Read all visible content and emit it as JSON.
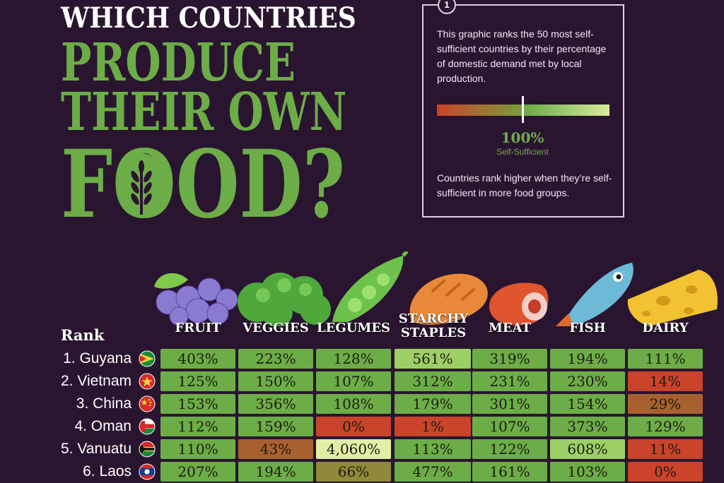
{
  "title": {
    "line1": "WHICH COUNTRIES",
    "line2": "PRODUCE",
    "line3": "THEIR OWN",
    "line4": "FOOD?"
  },
  "info": {
    "badge": "1",
    "text1": "This graphic ranks the 50 most self-sufficient countries by their percentage of domestic demand met by local production.",
    "scale_value": "100%",
    "scale_label": "Self-Sufficient",
    "text2": "Countries rank higher when they’re self-sufficient in more food groups."
  },
  "colors": {
    "background": "#2a1530",
    "title_green": "#6cad47",
    "deficit_red": "#c9442a",
    "surplus_green": "#6cad47",
    "light_green": "#d8ea9a"
  },
  "chart_data": {
    "type": "table",
    "rank_header": "Rank",
    "columns": [
      "FRUIT",
      "VEGGIES",
      "LEGUMES",
      "STARCHY STAPLES",
      "MEAT",
      "FISH",
      "DAIRY"
    ],
    "column_icons": [
      "grapes-icon",
      "broccoli-icon",
      "peapod-icon",
      "bread-icon",
      "meat-icon",
      "fish-icon",
      "cheese-icon"
    ],
    "rows": [
      {
        "rank": "1. Guyana",
        "flag": "guyana-flag-icon",
        "values": [
          "403%",
          "223%",
          "128%",
          "561%",
          "319%",
          "194%",
          "111%"
        ]
      },
      {
        "rank": "2. Vietnam",
        "flag": "vietnam-flag-icon",
        "values": [
          "125%",
          "150%",
          "107%",
          "312%",
          "231%",
          "230%",
          "14%"
        ]
      },
      {
        "rank": "3. China",
        "flag": "china-flag-icon",
        "values": [
          "153%",
          "356%",
          "108%",
          "179%",
          "301%",
          "154%",
          "29%"
        ]
      },
      {
        "rank": "4. Oman",
        "flag": "oman-flag-icon",
        "values": [
          "112%",
          "159%",
          "0%",
          "1%",
          "107%",
          "373%",
          "129%"
        ]
      },
      {
        "rank": "5. Vanuatu",
        "flag": "vanuatu-flag-icon",
        "values": [
          "110%",
          "43%",
          "4,060%",
          "113%",
          "122%",
          "608%",
          "11%"
        ]
      },
      {
        "rank": "6. Laos",
        "flag": "laos-flag-icon",
        "values": [
          "207%",
          "194%",
          "66%",
          "477%",
          "161%",
          "103%",
          "0%"
        ]
      }
    ]
  }
}
